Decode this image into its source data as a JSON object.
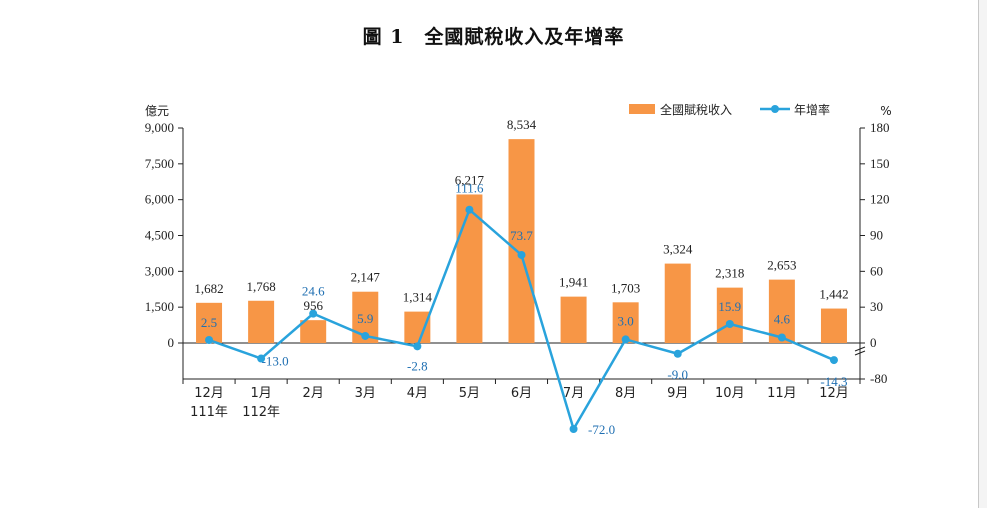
{
  "title": "圖 1　全國賦稅收入及年增率",
  "chart_data": {
    "type": "bar+line",
    "categories": [
      [
        "12月",
        "111年"
      ],
      [
        "1月",
        "112年"
      ],
      [
        "2月",
        ""
      ],
      [
        "3月",
        ""
      ],
      [
        "4月",
        ""
      ],
      [
        "5月",
        ""
      ],
      [
        "6月",
        ""
      ],
      [
        "7月",
        ""
      ],
      [
        "8月",
        ""
      ],
      [
        "9月",
        ""
      ],
      [
        "10月",
        ""
      ],
      [
        "11月",
        ""
      ],
      [
        "12月",
        ""
      ]
    ],
    "series": [
      {
        "name": "全國賦稅收入",
        "axis": "left",
        "kind": "bar",
        "values": [
          1682,
          1768,
          956,
          2147,
          1314,
          6217,
          8534,
          1941,
          1703,
          3324,
          2318,
          2653,
          1442
        ],
        "labels": [
          "1,682",
          "1,768",
          "956",
          "2,147",
          "1,314",
          "6,217",
          "8,534",
          "1,941",
          "1,703",
          "3,324",
          "2,318",
          "2,653",
          "1,442"
        ]
      },
      {
        "name": "年增率",
        "axis": "right",
        "kind": "line",
        "values": [
          2.5,
          -13.0,
          24.6,
          5.9,
          -2.8,
          111.6,
          73.7,
          -72.0,
          3.0,
          -9.0,
          15.9,
          4.6,
          -14.3
        ],
        "labels": [
          "2.5",
          "-13.0",
          "24.6",
          "5.9",
          "-2.8",
          "111.6",
          "73.7",
          "-72.0",
          "3.0",
          "-9.0",
          "15.9",
          "4.6",
          "-14.3"
        ]
      }
    ],
    "y_left": {
      "unit": "億元",
      "ticks": [
        0,
        1500,
        3000,
        4500,
        6000,
        7500,
        9000
      ],
      "tick_labels": [
        "0",
        "1,500",
        "3,000",
        "4,500",
        "6,000",
        "7,500",
        "9,000"
      ]
    },
    "y_right": {
      "unit": "%",
      "ticks": [
        -80,
        0,
        30,
        60,
        90,
        120,
        150,
        180
      ],
      "tick_labels": [
        "-80",
        "0",
        "30",
        "60",
        "90",
        "120",
        "150",
        "180"
      ]
    },
    "legend_position": "top-right",
    "grid": false,
    "colors": {
      "bar": "#f79646",
      "line": "#29a3dc",
      "rate_label": "#1f6fb2"
    }
  }
}
